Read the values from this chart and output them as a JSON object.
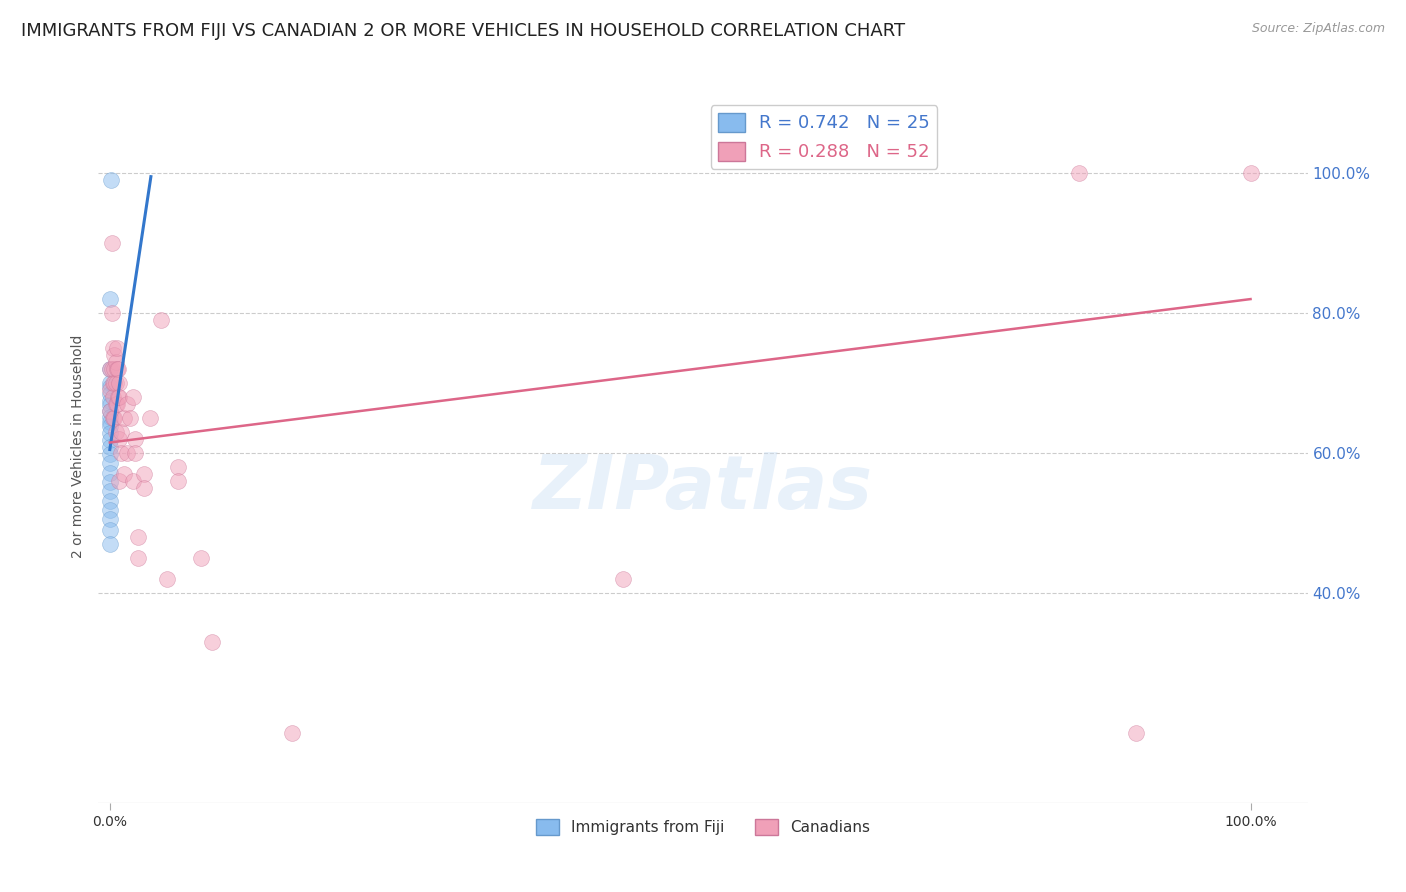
{
  "title": "IMMIGRANTS FROM FIJI VS CANADIAN 2 OR MORE VEHICLES IN HOUSEHOLD CORRELATION CHART",
  "source": "Source: ZipAtlas.com",
  "ylabel": "2 or more Vehicles in Household",
  "watermark": "ZIPatlas",
  "blue_scatter": [
    [
      0.0,
      0.82
    ],
    [
      0.1,
      0.99
    ],
    [
      0.0,
      0.72
    ],
    [
      0.0,
      0.7
    ],
    [
      0.0,
      0.695
    ],
    [
      0.0,
      0.685
    ],
    [
      0.0,
      0.675
    ],
    [
      0.0,
      0.668
    ],
    [
      0.0,
      0.66
    ],
    [
      0.0,
      0.652
    ],
    [
      0.0,
      0.645
    ],
    [
      0.0,
      0.638
    ],
    [
      0.0,
      0.628
    ],
    [
      0.0,
      0.618
    ],
    [
      0.0,
      0.608
    ],
    [
      0.0,
      0.598
    ],
    [
      0.0,
      0.585
    ],
    [
      0.0,
      0.572
    ],
    [
      0.0,
      0.558
    ],
    [
      0.0,
      0.545
    ],
    [
      0.0,
      0.532
    ],
    [
      0.0,
      0.518
    ],
    [
      0.0,
      0.505
    ],
    [
      0.0,
      0.49
    ],
    [
      0.0,
      0.47
    ]
  ],
  "pink_scatter": [
    [
      0.0,
      0.72
    ],
    [
      0.0,
      0.69
    ],
    [
      0.0,
      0.66
    ],
    [
      0.2,
      0.9
    ],
    [
      0.2,
      0.8
    ],
    [
      0.2,
      0.72
    ],
    [
      0.3,
      0.75
    ],
    [
      0.3,
      0.7
    ],
    [
      0.3,
      0.68
    ],
    [
      0.3,
      0.65
    ],
    [
      0.4,
      0.74
    ],
    [
      0.4,
      0.72
    ],
    [
      0.4,
      0.7
    ],
    [
      0.4,
      0.65
    ],
    [
      0.5,
      0.73
    ],
    [
      0.5,
      0.7
    ],
    [
      0.5,
      0.67
    ],
    [
      0.5,
      0.63
    ],
    [
      0.6,
      0.75
    ],
    [
      0.6,
      0.72
    ],
    [
      0.6,
      0.67
    ],
    [
      0.7,
      0.72
    ],
    [
      0.7,
      0.68
    ],
    [
      0.8,
      0.7
    ],
    [
      0.8,
      0.68
    ],
    [
      0.8,
      0.62
    ],
    [
      0.8,
      0.56
    ],
    [
      1.0,
      0.63
    ],
    [
      1.0,
      0.6
    ],
    [
      1.2,
      0.65
    ],
    [
      1.2,
      0.57
    ],
    [
      1.5,
      0.67
    ],
    [
      1.5,
      0.6
    ],
    [
      1.8,
      0.65
    ],
    [
      2.0,
      0.68
    ],
    [
      2.0,
      0.56
    ],
    [
      2.2,
      0.62
    ],
    [
      2.2,
      0.6
    ],
    [
      2.5,
      0.48
    ],
    [
      2.5,
      0.45
    ],
    [
      3.0,
      0.57
    ],
    [
      3.0,
      0.55
    ],
    [
      3.5,
      0.65
    ],
    [
      4.5,
      0.79
    ],
    [
      5.0,
      0.42
    ],
    [
      6.0,
      0.58
    ],
    [
      6.0,
      0.56
    ],
    [
      8.0,
      0.45
    ],
    [
      9.0,
      0.33
    ],
    [
      16.0,
      0.2
    ],
    [
      45.0,
      0.42
    ],
    [
      90.0,
      0.2
    ],
    [
      100.0,
      1.0
    ],
    [
      85.0,
      1.0
    ]
  ],
  "blue_line_x": [
    0.0,
    3.6
  ],
  "blue_line_y": [
    0.605,
    0.995
  ],
  "pink_line_x": [
    0.0,
    100.0
  ],
  "pink_line_y": [
    0.615,
    0.82
  ],
  "ytick_labels": [
    "40.0%",
    "60.0%",
    "80.0%",
    "100.0%"
  ],
  "ytick_values": [
    0.4,
    0.6,
    0.8,
    1.0
  ],
  "xtick_labels": [
    "0.0%",
    "100.0%"
  ],
  "xtick_values": [
    0.0,
    100.0
  ],
  "xlim": [
    -1.0,
    105.0
  ],
  "ylim": [
    0.1,
    1.12
  ],
  "title_color": "#222222",
  "source_color": "#999999",
  "ytick_color": "#4477cc",
  "title_fontsize": 13,
  "axis_label_fontsize": 10,
  "scatter_size": 130,
  "scatter_alpha": 0.5,
  "grid_color": "#cccccc",
  "background_color": "#ffffff",
  "blue_color": "#88bbee",
  "blue_edge": "#6699cc",
  "pink_color": "#f0a0b8",
  "pink_edge": "#cc7799",
  "blue_line_color": "#3377cc",
  "pink_line_color": "#dd6688"
}
